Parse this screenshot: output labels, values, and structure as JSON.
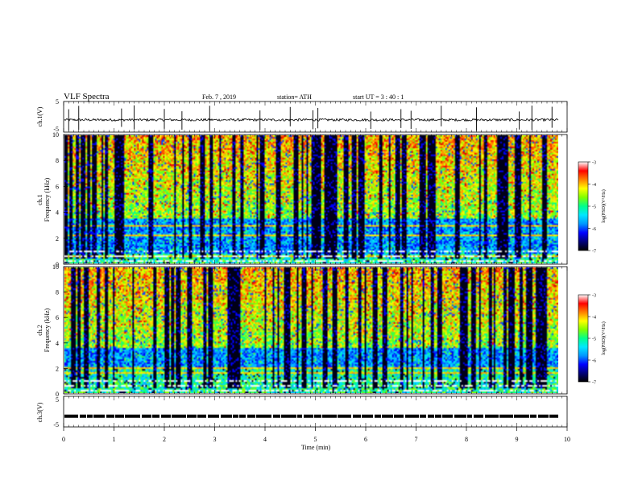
{
  "header": {
    "title": "VLF  Spectra",
    "date": "Feb. 7  , 2019",
    "station": "station= ATH",
    "start": "start  UT  =    3  : 40 : 1"
  },
  "chart_data": [
    {
      "type": "line",
      "panel": "ch1-waveform",
      "ylabel": "ch.1(V)",
      "ylim": [
        -5,
        5
      ],
      "yticks": [
        "5",
        "-5"
      ],
      "xlim": [
        0,
        10
      ],
      "baseline_v": -1.0,
      "spike_minutes": [
        0.1,
        0.3,
        1.15,
        1.4,
        2.0,
        2.35,
        2.9,
        3.9,
        4.5,
        4.95,
        5.05,
        6.1,
        6.7,
        6.9,
        7.5,
        8.2,
        9.05,
        9.3,
        9.7
      ]
    },
    {
      "type": "heatmap",
      "panel": "ch1-spectrogram",
      "ylabel": "ch.1\nFrequency  (kHz)",
      "ylim": [
        0,
        10
      ],
      "yticks": [
        "0",
        "2",
        "4",
        "6",
        "8",
        "10"
      ],
      "xlim": [
        0,
        9.8
      ],
      "quiet_band_khz": [
        0.8,
        3.5
      ],
      "strong_line_khz": [
        0.6,
        2.2,
        3.0
      ],
      "colorbar": {
        "label": "log(PSD)(V²/Hz)",
        "ticks": [
          "-3",
          "-4",
          "-5",
          "-6",
          "-7"
        ],
        "range": [
          -7,
          -3
        ]
      }
    },
    {
      "type": "heatmap",
      "panel": "ch2-spectrogram",
      "ylabel": "ch.2\nFrequency  (kHz)",
      "ylim": [
        0,
        10
      ],
      "yticks": [
        "0",
        "2",
        "4",
        "6",
        "8",
        "10"
      ],
      "xlim": [
        0,
        9.8
      ],
      "quiet_band_khz": [
        2.1,
        3.6
      ],
      "strong_line_khz": [
        2.0,
        1.7
      ],
      "colorbar": {
        "label": "log(PSD)(V²/Hz)",
        "ticks": [
          "-3",
          "-4",
          "-5",
          "-6",
          "-7"
        ],
        "range": [
          -7,
          -3
        ]
      }
    },
    {
      "type": "line",
      "panel": "ch3-waveform",
      "ylabel": "ch.3(V)",
      "ylim": [
        -5,
        5
      ],
      "yticks": [
        "5",
        "-5"
      ],
      "xlim": [
        0,
        10
      ],
      "level_v": -1.5,
      "xlabel": "Time  (min)",
      "xticks": [
        "0",
        "1",
        "2",
        "3",
        "4",
        "5",
        "6",
        "7",
        "8",
        "9",
        "10"
      ]
    }
  ],
  "colors": {
    "palette": [
      "#000000",
      "#00007a",
      "#0000ff",
      "#0096ff",
      "#00e6ff",
      "#00ff8c",
      "#7fff00",
      "#ffff00",
      "#ff8000",
      "#ff0000",
      "#c80000",
      "#ffffff"
    ]
  }
}
